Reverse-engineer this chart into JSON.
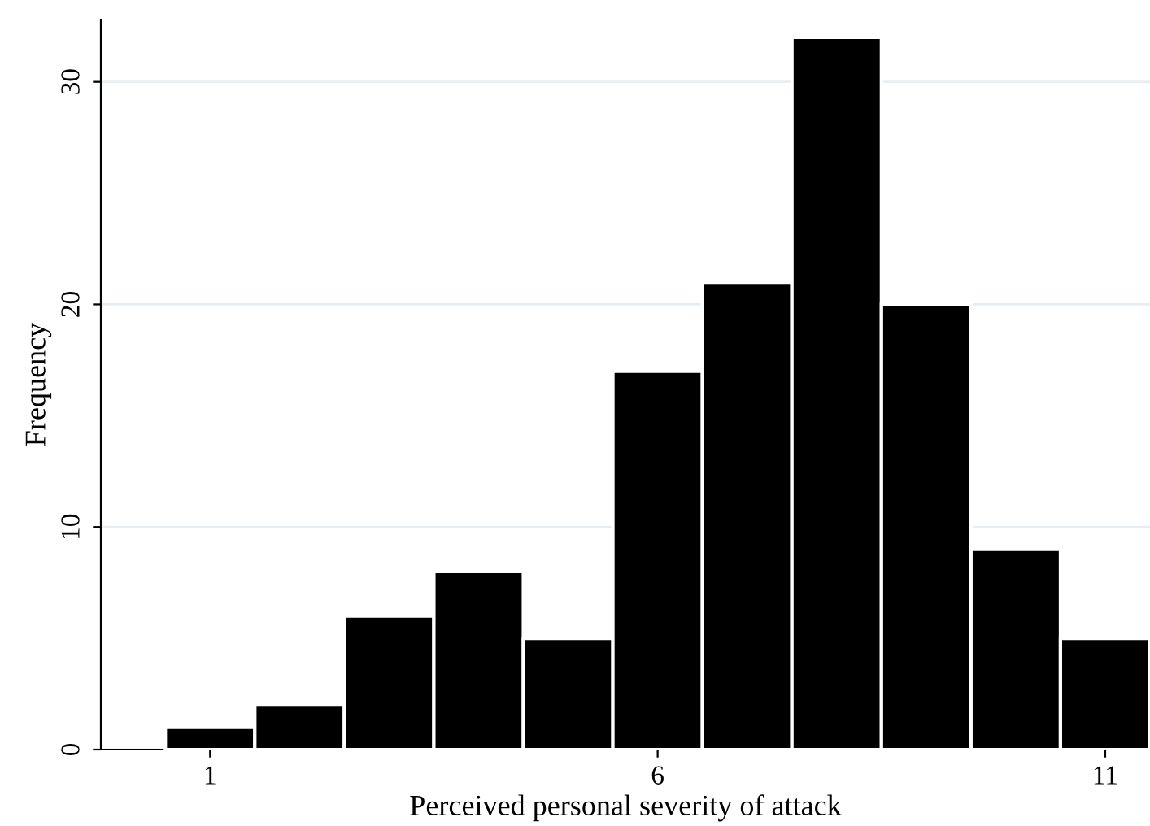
{
  "chart_data": {
    "type": "histogram",
    "xlabel": "Perceived personal severity of attack",
    "ylabel": "Frequency",
    "bins": [
      0.5,
      1.5,
      2.5,
      3.5,
      4.5,
      5.5,
      6.5,
      7.5,
      8.5,
      9.5,
      10.5,
      11.5
    ],
    "values": [
      1,
      2,
      6,
      8,
      5,
      17,
      21,
      32,
      20,
      9,
      5
    ],
    "color": "#000000",
    "xlim": [
      -0.22,
      11.5
    ],
    "xticks": [
      1,
      6,
      11
    ],
    "ylim": [
      0,
      32.8
    ],
    "yticks": [
      0,
      10,
      20,
      30
    ],
    "grid": "y"
  }
}
